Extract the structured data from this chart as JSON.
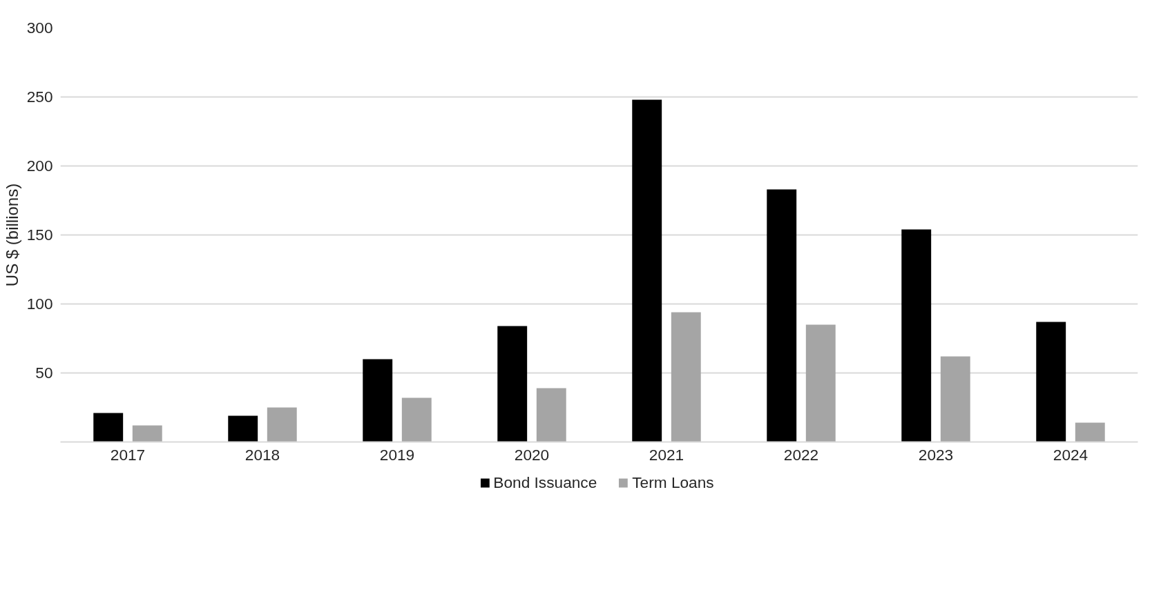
{
  "chart_data": {
    "type": "bar",
    "ylabel": "US $ (billions)",
    "categories": [
      "2017",
      "2018",
      "2019",
      "2020",
      "2021",
      "2022",
      "2023",
      "2024"
    ],
    "series": [
      {
        "name": "Bond Issuance",
        "color": "#000000",
        "values": [
          21,
          19,
          60,
          84,
          248,
          183,
          154,
          87
        ]
      },
      {
        "name": "Term Loans",
        "color": "#a5a5a5",
        "values": [
          12,
          25,
          32,
          39,
          94,
          85,
          62,
          14
        ]
      }
    ],
    "ylim": [
      0,
      300
    ],
    "yticks": [
      50,
      100,
      150,
      200,
      250,
      300
    ],
    "grid": "y",
    "legend": "bottom"
  }
}
